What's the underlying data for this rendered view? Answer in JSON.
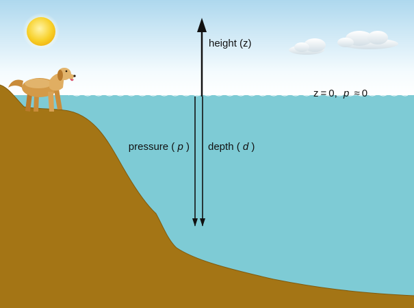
{
  "labels": {
    "height": "height (z)",
    "surface": {
      "z_eq": "z = 0,",
      "p_var": "p",
      "p_eq": " ≈ 0"
    },
    "pressure": {
      "prefix": "pressure (",
      "var": "p",
      "suffix": ")"
    },
    "depth": {
      "prefix": "depth (",
      "var": "d",
      "suffix": ")"
    }
  },
  "colors": {
    "sky_top": "#aed8ee",
    "sky_bottom": "#ffffff",
    "water": "#7ecbd5",
    "ground": "#a47515",
    "sun": "#f8d12a",
    "arrow": "#111111"
  },
  "icons": [
    "sun-icon",
    "cloud-icon",
    "dog-icon"
  ]
}
